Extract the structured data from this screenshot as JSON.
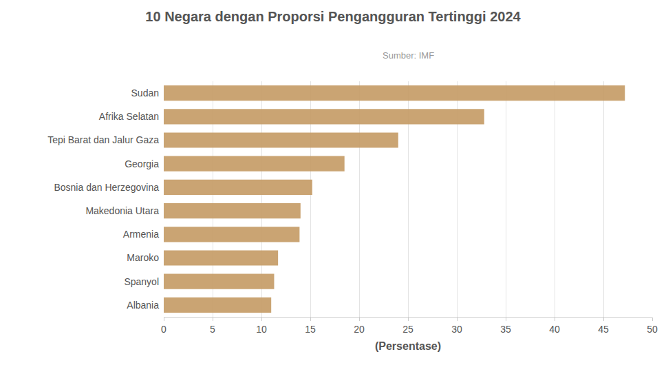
{
  "chart_data": {
    "type": "bar",
    "orientation": "horizontal",
    "title": "10 Negara dengan Proporsi Pengangguran Tertinggi 2024",
    "subtitle": "Sumber: IMF",
    "x_label": "(Persentase)",
    "categories": [
      "Sudan",
      "Afrika Selatan",
      "Tepi Barat dan Jalur Gaza",
      "Georgia",
      "Bosnia dan Herzegovina",
      "Makedonia Utara",
      "Armenia",
      "Maroko",
      "Spanyol",
      "Albania"
    ],
    "values": [
      47.2,
      32.8,
      24.0,
      18.5,
      15.2,
      14.0,
      13.9,
      11.7,
      11.3,
      11.0
    ],
    "color": "#c49a64",
    "xlim": [
      0,
      50
    ],
    "xticks": [
      0,
      5,
      10,
      15,
      20,
      25,
      30,
      35,
      40,
      45,
      50
    ],
    "grid": true
  }
}
